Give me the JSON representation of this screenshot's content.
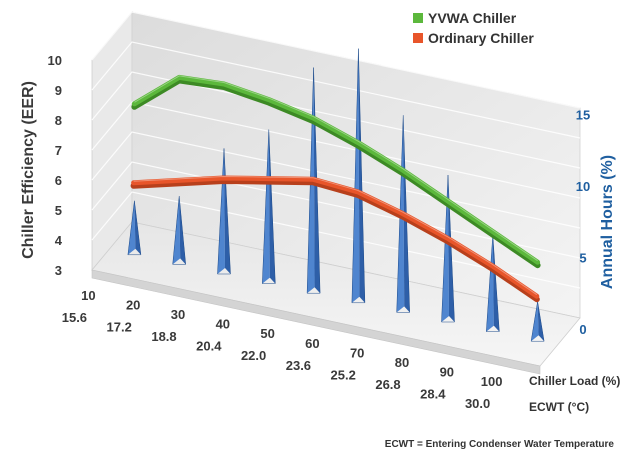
{
  "chart_data": {
    "type": "line",
    "x_label": "Chiller Load (%)",
    "x2_label": "ECWT (°C)",
    "y_label": "Chiller Efficiency (EER)",
    "y2_label": "Annual Hours (%)",
    "categories": [
      "10",
      "20",
      "30",
      "40",
      "50",
      "60",
      "70",
      "80",
      "90",
      "100"
    ],
    "categories2": [
      "15.6",
      "17.2",
      "18.8",
      "20.4",
      "22.0",
      "23.6",
      "25.2",
      "26.8",
      "28.4",
      "30.0"
    ],
    "ylim": [
      3,
      10
    ],
    "y_ticks": [
      "3",
      "4",
      "5",
      "6",
      "7",
      "8",
      "9",
      "10"
    ],
    "y2lim": [
      0,
      17.5
    ],
    "y2_ticks": [
      "0",
      "5",
      "10",
      "15"
    ],
    "series": [
      {
        "name": "YVWA Chiller",
        "color": "#5cb83c",
        "values": [
          7.9,
          9.1,
          9.2,
          9.0,
          8.7,
          8.2,
          7.6,
          6.9,
          6.2,
          5.5
        ]
      },
      {
        "name": "Ordinary Chiller",
        "color": "#e8552a",
        "values": [
          5.3,
          5.7,
          6.1,
          6.4,
          6.7,
          6.6,
          6.2,
          5.7,
          5.1,
          4.4
        ]
      }
    ],
    "bars": {
      "name": "Annual Hours",
      "color": "#2e5fa8",
      "values": [
        3.5,
        4.5,
        8.5,
        10.5,
        15.5,
        17.5,
        13.5,
        10.0,
        6.5,
        2.5
      ]
    },
    "grid": true,
    "legend_position": "top-right",
    "footnote": "ECWT = Entering Condenser Water Temperature"
  }
}
